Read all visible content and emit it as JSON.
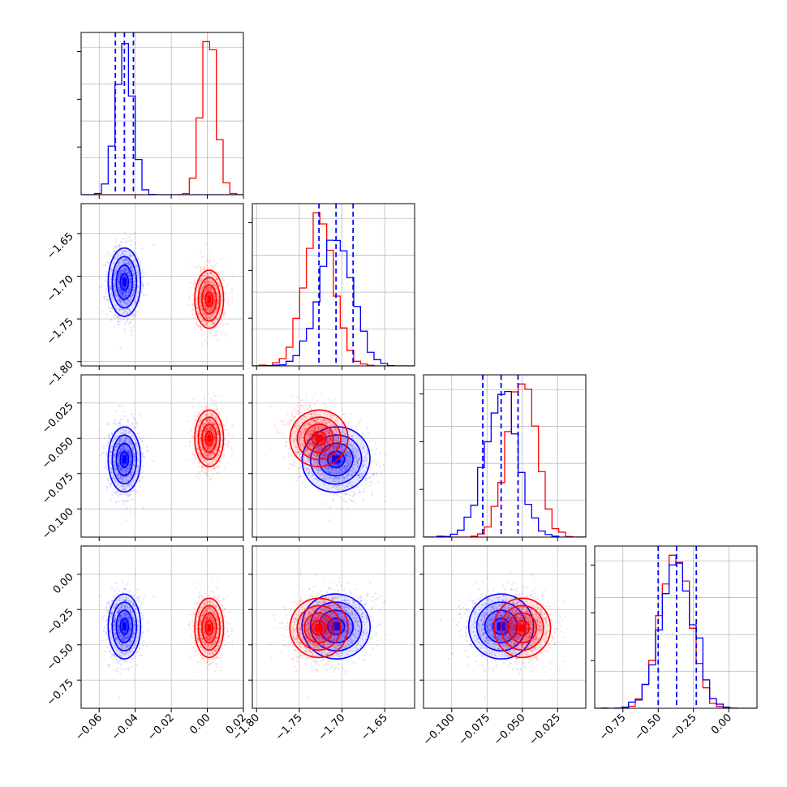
{
  "chart_data": {
    "type": "scatter",
    "subtype": "corner-plot",
    "title": "",
    "grid": true,
    "legend": "none",
    "parameters": [
      {
        "range": [
          -0.07,
          0.02
        ],
        "ticks": [
          -0.06,
          -0.04,
          -0.02,
          0.0,
          0.02
        ],
        "tick_labels": [
          "−0.06",
          "−0.04",
          "−0.02",
          "0.00",
          "0.02"
        ]
      },
      {
        "range": [
          -1.805,
          -1.615
        ],
        "ticks": [
          -1.8,
          -1.75,
          -1.7,
          -1.65
        ],
        "tick_labels": [
          "−1.80",
          "−1.75",
          "−1.70",
          "−1.65"
        ]
      },
      {
        "range": [
          -0.12,
          -0.005
        ],
        "ticks": [
          -0.1,
          -0.075,
          -0.05,
          -0.025
        ],
        "tick_labels": [
          "−0.100",
          "−0.075",
          "−0.050",
          "−0.025"
        ]
      },
      {
        "range": [
          -0.95,
          0.2
        ],
        "ticks": [
          -0.75,
          -0.5,
          -0.25,
          0.0
        ],
        "tick_labels": [
          "−0.75",
          "−0.50",
          "−0.25",
          "0.00"
        ]
      }
    ],
    "series": [
      {
        "color": "#0000ff",
        "mean": [
          -0.046,
          -1.707,
          -0.065,
          -0.37
        ],
        "std": [
          0.0045,
          0.02,
          0.0115,
          0.115
        ],
        "corr": [
          [
            1,
            0,
            0,
            0
          ],
          [
            0,
            1,
            -0.3,
            0.15
          ],
          [
            0,
            -0.3,
            1,
            0
          ],
          [
            0,
            0.15,
            0,
            1
          ]
        ],
        "quantiles": [
          [
            -0.051,
            -0.046,
            -0.041
          ],
          [
            -1.727,
            -1.707,
            -1.687
          ],
          [
            -0.078,
            -0.065,
            -0.053
          ],
          [
            -0.5,
            -0.37,
            -0.23
          ]
        ],
        "show_quantile_lines": true
      },
      {
        "color": "#ff0000",
        "mean": [
          0.001,
          -1.727,
          -0.05,
          -0.38
        ],
        "std": [
          0.004,
          0.017,
          0.01,
          0.105
        ],
        "corr": [
          [
            1,
            0,
            0,
            0
          ],
          [
            0,
            1,
            -0.25,
            0.1
          ],
          [
            0,
            -0.25,
            1,
            0
          ],
          [
            0,
            0.1,
            0,
            1
          ]
        ],
        "show_quantile_lines": false
      }
    ]
  }
}
